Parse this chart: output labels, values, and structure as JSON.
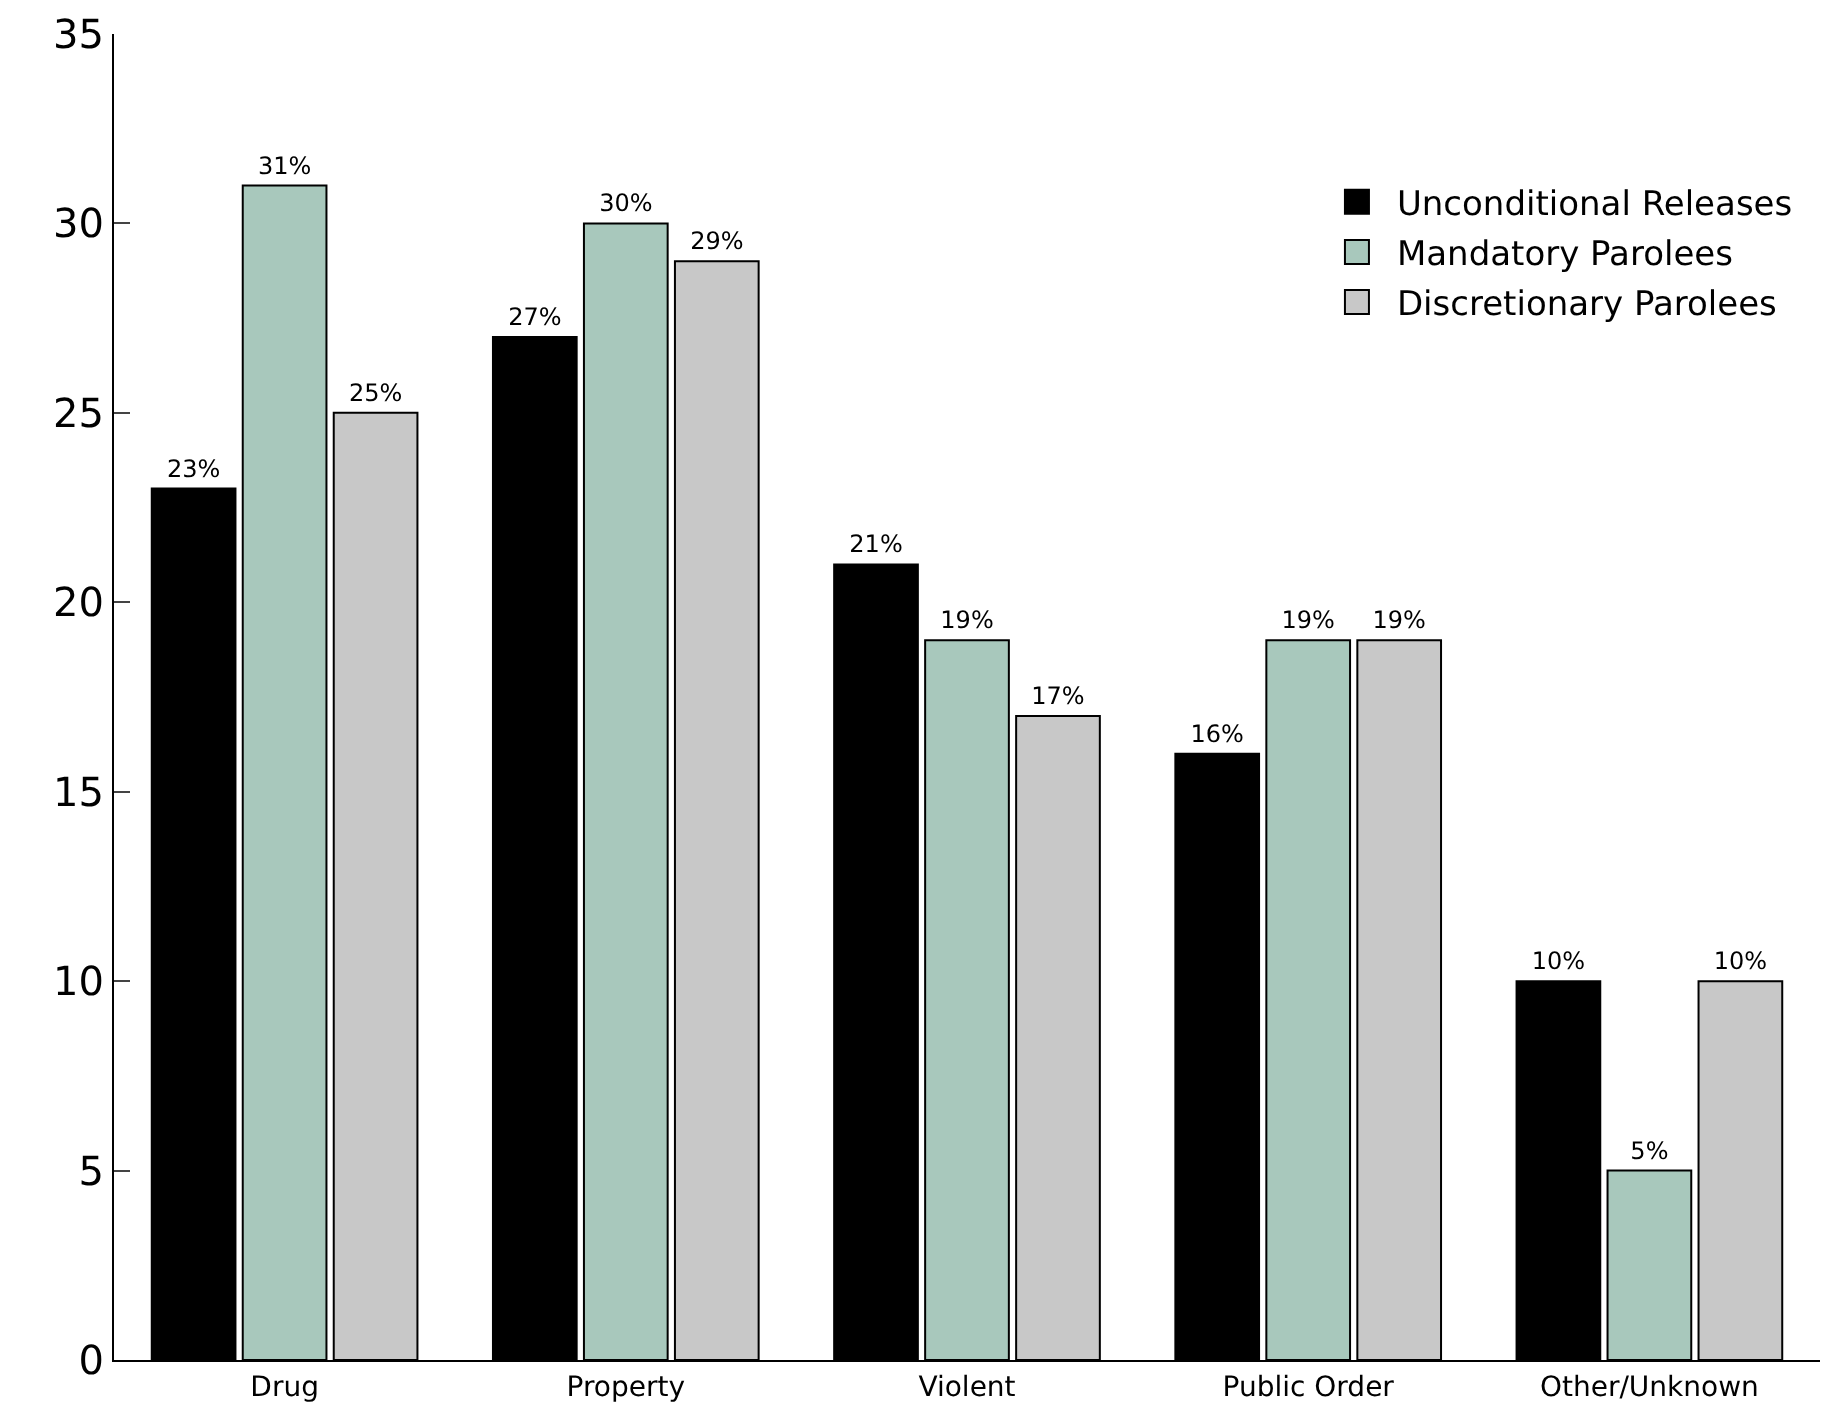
{
  "chart_data": {
    "type": "bar",
    "categories": [
      "Drug",
      "Property",
      "Violent",
      "Public Order",
      "Other/Unknown"
    ],
    "series": [
      {
        "name": "Unconditional Releases",
        "color": "#000000",
        "values": [
          23,
          27,
          21,
          16,
          10
        ],
        "value_labels": [
          "23%",
          "27%",
          "21%",
          "16%",
          "10%"
        ]
      },
      {
        "name": "Mandatory Parolees",
        "color": "#a8c8bc",
        "values": [
          31,
          30,
          19,
          19,
          5
        ],
        "value_labels": [
          "31%",
          "30%",
          "19%",
          "19%",
          "5%"
        ]
      },
      {
        "name": "Discretionary Parolees",
        "color": "#c8c8c8",
        "values": [
          25,
          29,
          17,
          19,
          10
        ],
        "value_labels": [
          "25%",
          "29%",
          "17%",
          "19%",
          "10%"
        ]
      }
    ],
    "ylim": [
      0,
      35
    ],
    "yticks": [
      0,
      5,
      10,
      15,
      20,
      25,
      30,
      35
    ],
    "grid": false,
    "legend": "top right"
  }
}
